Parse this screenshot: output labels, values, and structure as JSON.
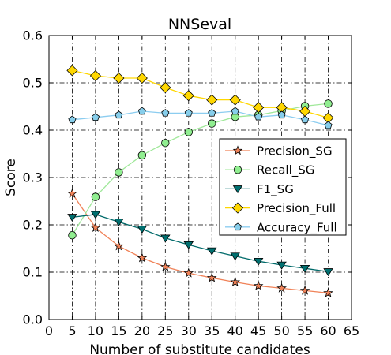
{
  "chart_data": {
    "type": "line",
    "title": "NNSeval",
    "xlabel": "Number of substitute candidates",
    "ylabel": "Score",
    "xlim": [
      0,
      65
    ],
    "ylim": [
      0.0,
      0.6
    ],
    "xticks": [
      "0",
      "5",
      "10",
      "15",
      "20",
      "25",
      "30",
      "35",
      "40",
      "45",
      "50",
      "55",
      "60",
      "65"
    ],
    "yticks": [
      "0.0",
      "0.1",
      "0.2",
      "0.3",
      "0.4",
      "0.5",
      "0.6"
    ],
    "grid": true,
    "legend_position": "center-right",
    "x": [
      5,
      10,
      15,
      20,
      25,
      30,
      35,
      40,
      45,
      50,
      55,
      60
    ],
    "series": [
      {
        "name": "Precision_SG",
        "color": "#f08258",
        "marker": "star",
        "marker_fill": "#f08258",
        "values": [
          0.266,
          0.194,
          0.155,
          0.13,
          0.111,
          0.098,
          0.088,
          0.079,
          0.071,
          0.066,
          0.061,
          0.056
        ]
      },
      {
        "name": "Recall_SG",
        "color": "#a0e89a",
        "marker": "circle",
        "marker_fill": "#90ee90",
        "values": [
          0.178,
          0.259,
          0.311,
          0.347,
          0.373,
          0.396,
          0.414,
          0.428,
          0.432,
          0.441,
          0.451,
          0.456
        ]
      },
      {
        "name": "F1_SG",
        "color": "#006a6a",
        "marker": "triangle-down",
        "marker_fill": "#007070",
        "values": [
          0.216,
          0.222,
          0.206,
          0.191,
          0.172,
          0.158,
          0.145,
          0.134,
          0.123,
          0.115,
          0.108,
          0.101
        ]
      },
      {
        "name": "Precision_Full",
        "color": "#ffd700",
        "marker": "diamond",
        "marker_fill": "#ffd700",
        "values": [
          0.526,
          0.515,
          0.51,
          0.51,
          0.49,
          0.473,
          0.464,
          0.464,
          0.448,
          0.448,
          0.44,
          0.426
        ]
      },
      {
        "name": "Accuracy_Full",
        "color": "#8ccdf0",
        "marker": "pentagon",
        "marker_fill": "#87ceeb",
        "values": [
          0.422,
          0.427,
          0.432,
          0.44,
          0.436,
          0.436,
          0.436,
          0.44,
          0.428,
          0.432,
          0.422,
          0.41
        ]
      }
    ]
  }
}
